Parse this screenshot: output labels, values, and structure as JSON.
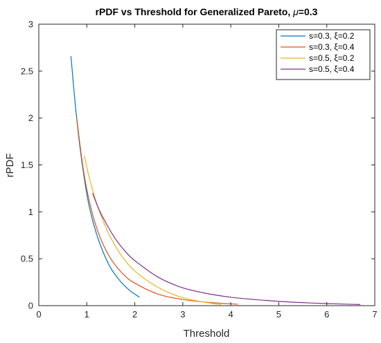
{
  "chart_data": {
    "type": "line",
    "title": "rPDF vs Threshold for Generalized Pareto, μ=0.3",
    "xlabel": "Threshold",
    "ylabel": "rPDF",
    "xlim": [
      0,
      7
    ],
    "ylim": [
      0,
      3
    ],
    "xticks": [
      "0",
      "1",
      "2",
      "3",
      "4",
      "5",
      "6",
      "7"
    ],
    "yticks": [
      "0",
      "0.5",
      "1",
      "1.5",
      "2",
      "2.5",
      "3"
    ],
    "grid": false,
    "legend_position": "top-right",
    "series": [
      {
        "name": "s=0.3, ξ=0.2",
        "color": "#0072BD",
        "points": [
          [
            0.67,
            2.66
          ],
          [
            0.75,
            2.2
          ],
          [
            0.85,
            1.72
          ],
          [
            0.95,
            1.35
          ],
          [
            1.05,
            1.06
          ],
          [
            1.2,
            0.77
          ],
          [
            1.35,
            0.56
          ],
          [
            1.5,
            0.4
          ],
          [
            1.7,
            0.26
          ],
          [
            1.9,
            0.16
          ],
          [
            2.1,
            0.09
          ]
        ]
      },
      {
        "name": "s=0.3, ξ=0.4",
        "color": "#D95319",
        "points": [
          [
            0.79,
            2.0
          ],
          [
            0.9,
            1.55
          ],
          [
            1.0,
            1.24
          ],
          [
            1.15,
            0.92
          ],
          [
            1.3,
            0.7
          ],
          [
            1.5,
            0.5
          ],
          [
            1.75,
            0.34
          ],
          [
            2.0,
            0.24
          ],
          [
            2.5,
            0.12
          ],
          [
            3.0,
            0.066
          ],
          [
            3.5,
            0.036
          ],
          [
            4.15,
            0.015
          ]
        ]
      },
      {
        "name": "s=0.5, ξ=0.2",
        "color": "#EDB120",
        "points": [
          [
            0.95,
            1.6
          ],
          [
            1.05,
            1.37
          ],
          [
            1.2,
            1.1
          ],
          [
            1.4,
            0.83
          ],
          [
            1.6,
            0.63
          ],
          [
            1.8,
            0.48
          ],
          [
            2.0,
            0.37
          ],
          [
            2.4,
            0.22
          ],
          [
            2.8,
            0.12
          ],
          [
            3.2,
            0.06
          ],
          [
            3.6,
            0.025
          ],
          [
            3.8,
            0.01
          ]
        ]
      },
      {
        "name": "s=0.5, ξ=0.4",
        "color": "#7E2F8E",
        "points": [
          [
            1.12,
            1.2
          ],
          [
            1.25,
            1.03
          ],
          [
            1.4,
            0.88
          ],
          [
            1.6,
            0.71
          ],
          [
            1.8,
            0.58
          ],
          [
            2.0,
            0.48
          ],
          [
            2.5,
            0.3
          ],
          [
            3.0,
            0.19
          ],
          [
            3.5,
            0.13
          ],
          [
            4.0,
            0.09
          ],
          [
            4.5,
            0.065
          ],
          [
            5.0,
            0.046
          ],
          [
            5.5,
            0.032
          ],
          [
            6.0,
            0.022
          ],
          [
            6.4,
            0.016
          ],
          [
            6.7,
            0.012
          ]
        ]
      }
    ]
  }
}
